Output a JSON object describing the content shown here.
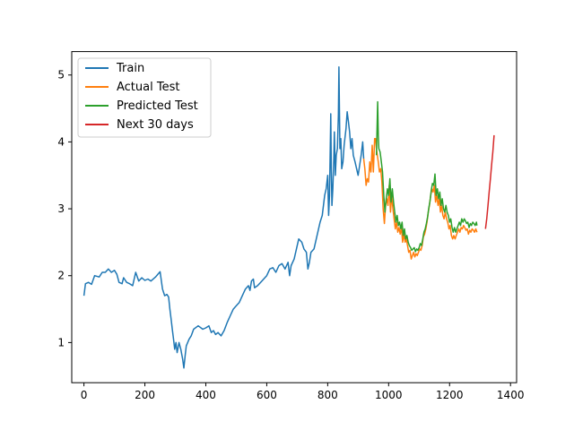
{
  "chart_data": {
    "type": "line",
    "title": "",
    "xlabel": "",
    "ylabel": "",
    "xlim": [
      -40,
      1420
    ],
    "ylim": [
      0.4,
      5.35
    ],
    "xticks": [
      0,
      200,
      400,
      600,
      800,
      1000,
      1200,
      1400
    ],
    "yticks": [
      1,
      2,
      3,
      4,
      5
    ],
    "xtick_labels": [
      "0",
      "200",
      "400",
      "600",
      "800",
      "1000",
      "1200",
      "1400"
    ],
    "ytick_labels": [
      "1",
      "2",
      "3",
      "4",
      "5"
    ],
    "legend_position": "top-left",
    "series": [
      {
        "name": "Train",
        "color": "#1f77b4",
        "points": [
          [
            0,
            1.7
          ],
          [
            5,
            1.88
          ],
          [
            15,
            1.9
          ],
          [
            25,
            1.87
          ],
          [
            35,
            2.0
          ],
          [
            50,
            1.98
          ],
          [
            60,
            2.05
          ],
          [
            70,
            2.05
          ],
          [
            80,
            2.1
          ],
          [
            90,
            2.05
          ],
          [
            100,
            2.08
          ],
          [
            108,
            2.02
          ],
          [
            115,
            1.9
          ],
          [
            125,
            1.88
          ],
          [
            130,
            1.97
          ],
          [
            140,
            1.9
          ],
          [
            150,
            1.88
          ],
          [
            160,
            1.85
          ],
          [
            170,
            2.05
          ],
          [
            180,
            1.92
          ],
          [
            190,
            1.97
          ],
          [
            200,
            1.93
          ],
          [
            210,
            1.95
          ],
          [
            220,
            1.92
          ],
          [
            235,
            1.98
          ],
          [
            250,
            2.06
          ],
          [
            258,
            1.8
          ],
          [
            265,
            1.7
          ],
          [
            272,
            1.72
          ],
          [
            278,
            1.68
          ],
          [
            282,
            1.5
          ],
          [
            286,
            1.35
          ],
          [
            290,
            1.2
          ],
          [
            294,
            1.05
          ],
          [
            298,
            0.9
          ],
          [
            302,
            1.0
          ],
          [
            306,
            0.85
          ],
          [
            312,
            1.0
          ],
          [
            318,
            0.9
          ],
          [
            324,
            0.75
          ],
          [
            328,
            0.62
          ],
          [
            332,
            0.8
          ],
          [
            336,
            0.95
          ],
          [
            345,
            1.05
          ],
          [
            352,
            1.1
          ],
          [
            360,
            1.2
          ],
          [
            375,
            1.25
          ],
          [
            390,
            1.2
          ],
          [
            400,
            1.22
          ],
          [
            410,
            1.25
          ],
          [
            418,
            1.15
          ],
          [
            425,
            1.18
          ],
          [
            432,
            1.12
          ],
          [
            440,
            1.15
          ],
          [
            450,
            1.1
          ],
          [
            460,
            1.18
          ],
          [
            470,
            1.3
          ],
          [
            480,
            1.4
          ],
          [
            490,
            1.5
          ],
          [
            500,
            1.55
          ],
          [
            510,
            1.6
          ],
          [
            520,
            1.7
          ],
          [
            530,
            1.8
          ],
          [
            540,
            1.85
          ],
          [
            545,
            1.78
          ],
          [
            550,
            1.92
          ],
          [
            556,
            1.95
          ],
          [
            560,
            1.82
          ],
          [
            570,
            1.85
          ],
          [
            580,
            1.9
          ],
          [
            590,
            1.95
          ],
          [
            600,
            2.0
          ],
          [
            610,
            2.1
          ],
          [
            620,
            2.12
          ],
          [
            630,
            2.05
          ],
          [
            640,
            2.15
          ],
          [
            650,
            2.18
          ],
          [
            660,
            2.1
          ],
          [
            670,
            2.2
          ],
          [
            675,
            2.0
          ],
          [
            680,
            2.15
          ],
          [
            690,
            2.25
          ],
          [
            700,
            2.45
          ],
          [
            705,
            2.55
          ],
          [
            715,
            2.5
          ],
          [
            722,
            2.4
          ],
          [
            730,
            2.35
          ],
          [
            735,
            2.1
          ],
          [
            740,
            2.2
          ],
          [
            745,
            2.35
          ],
          [
            755,
            2.4
          ],
          [
            765,
            2.6
          ],
          [
            775,
            2.8
          ],
          [
            782,
            2.9
          ],
          [
            790,
            3.2
          ],
          [
            795,
            3.3
          ],
          [
            800,
            3.5
          ],
          [
            803,
            2.9
          ],
          [
            806,
            3.2
          ],
          [
            810,
            4.42
          ],
          [
            812,
            3.6
          ],
          [
            814,
            3.05
          ],
          [
            817,
            3.3
          ],
          [
            820,
            3.75
          ],
          [
            822,
            4.15
          ],
          [
            825,
            3.5
          ],
          [
            828,
            3.8
          ],
          [
            832,
            3.9
          ],
          [
            835,
            4.4
          ],
          [
            837,
            5.12
          ],
          [
            840,
            3.9
          ],
          [
            843,
            4.05
          ],
          [
            846,
            3.6
          ],
          [
            850,
            3.7
          ],
          [
            854,
            3.95
          ],
          [
            860,
            4.2
          ],
          [
            864,
            4.45
          ],
          [
            868,
            4.3
          ],
          [
            872,
            4.15
          ],
          [
            876,
            3.9
          ],
          [
            880,
            4.05
          ],
          [
            884,
            3.8
          ],
          [
            890,
            3.7
          ],
          [
            895,
            3.6
          ],
          [
            900,
            3.5
          ],
          [
            905,
            3.65
          ],
          [
            910,
            3.8
          ],
          [
            915,
            4.0
          ],
          [
            918,
            3.75
          ]
        ]
      },
      {
        "name": "Actual Test",
        "color": "#ff7f0e",
        "points": [
          [
            918,
            3.75
          ],
          [
            922,
            3.6
          ],
          [
            926,
            3.35
          ],
          [
            930,
            3.45
          ],
          [
            934,
            3.4
          ],
          [
            938,
            3.7
          ],
          [
            942,
            3.55
          ],
          [
            946,
            3.95
          ],
          [
            950,
            3.55
          ],
          [
            954,
            4.05
          ],
          [
            957,
            4.05
          ],
          [
            960,
            3.9
          ],
          [
            963,
            3.8
          ],
          [
            966,
            3.7
          ],
          [
            970,
            3.55
          ],
          [
            974,
            3.6
          ],
          [
            978,
            3.4
          ],
          [
            982,
            3.0
          ],
          [
            986,
            2.78
          ],
          [
            990,
            3.05
          ],
          [
            994,
            3.15
          ],
          [
            998,
            3.05
          ],
          [
            1002,
            3.35
          ],
          [
            1006,
            2.95
          ],
          [
            1010,
            3.2
          ],
          [
            1014,
            3.0
          ],
          [
            1018,
            2.85
          ],
          [
            1022,
            2.7
          ],
          [
            1026,
            2.8
          ],
          [
            1030,
            2.65
          ],
          [
            1034,
            2.72
          ],
          [
            1038,
            2.62
          ],
          [
            1042,
            2.72
          ],
          [
            1046,
            2.5
          ],
          [
            1050,
            2.62
          ],
          [
            1054,
            2.5
          ],
          [
            1058,
            2.55
          ],
          [
            1062,
            2.45
          ],
          [
            1066,
            2.35
          ],
          [
            1070,
            2.38
          ],
          [
            1074,
            2.25
          ],
          [
            1078,
            2.3
          ],
          [
            1082,
            2.35
          ],
          [
            1086,
            2.28
          ],
          [
            1090,
            2.33
          ],
          [
            1094,
            2.3
          ],
          [
            1098,
            2.35
          ],
          [
            1102,
            2.4
          ],
          [
            1106,
            2.38
          ],
          [
            1110,
            2.45
          ],
          [
            1114,
            2.58
          ],
          [
            1118,
            2.62
          ],
          [
            1122,
            2.7
          ],
          [
            1126,
            2.8
          ],
          [
            1130,
            2.95
          ],
          [
            1134,
            3.05
          ],
          [
            1138,
            3.2
          ],
          [
            1142,
            3.3
          ],
          [
            1146,
            3.25
          ],
          [
            1150,
            3.35
          ],
          [
            1154,
            3.1
          ],
          [
            1158,
            3.2
          ],
          [
            1162,
            3.05
          ],
          [
            1166,
            3.15
          ],
          [
            1170,
            2.95
          ],
          [
            1174,
            3.05
          ],
          [
            1178,
            2.9
          ],
          [
            1182,
            2.85
          ],
          [
            1186,
            2.95
          ],
          [
            1190,
            2.85
          ],
          [
            1194,
            2.8
          ],
          [
            1198,
            2.7
          ],
          [
            1202,
            2.75
          ],
          [
            1206,
            2.6
          ],
          [
            1210,
            2.55
          ],
          [
            1214,
            2.6
          ],
          [
            1218,
            2.55
          ],
          [
            1222,
            2.6
          ],
          [
            1226,
            2.65
          ],
          [
            1230,
            2.7
          ],
          [
            1234,
            2.65
          ],
          [
            1238,
            2.72
          ],
          [
            1242,
            2.7
          ],
          [
            1246,
            2.75
          ],
          [
            1250,
            2.72
          ],
          [
            1254,
            2.68
          ],
          [
            1258,
            2.7
          ],
          [
            1262,
            2.62
          ],
          [
            1266,
            2.68
          ],
          [
            1270,
            2.65
          ],
          [
            1274,
            2.7
          ],
          [
            1278,
            2.68
          ],
          [
            1282,
            2.65
          ],
          [
            1286,
            2.7
          ],
          [
            1290,
            2.65
          ]
        ]
      },
      {
        "name": "Predicted Test",
        "color": "#2ca02c",
        "points": [
          [
            960,
            3.8
          ],
          [
            962,
            4.2
          ],
          [
            964,
            4.6
          ],
          [
            966,
            4.1
          ],
          [
            968,
            3.9
          ],
          [
            972,
            3.85
          ],
          [
            976,
            3.7
          ],
          [
            980,
            3.55
          ],
          [
            984,
            3.2
          ],
          [
            988,
            2.95
          ],
          [
            992,
            3.15
          ],
          [
            996,
            3.3
          ],
          [
            1000,
            3.2
          ],
          [
            1004,
            3.45
          ],
          [
            1008,
            3.1
          ],
          [
            1012,
            3.3
          ],
          [
            1016,
            3.1
          ],
          [
            1020,
            2.95
          ],
          [
            1024,
            2.8
          ],
          [
            1028,
            2.9
          ],
          [
            1032,
            2.75
          ],
          [
            1036,
            2.8
          ],
          [
            1040,
            2.7
          ],
          [
            1044,
            2.8
          ],
          [
            1048,
            2.6
          ],
          [
            1052,
            2.7
          ],
          [
            1056,
            2.55
          ],
          [
            1060,
            2.6
          ],
          [
            1064,
            2.5
          ],
          [
            1068,
            2.45
          ],
          [
            1072,
            2.42
          ],
          [
            1076,
            2.38
          ],
          [
            1080,
            2.4
          ],
          [
            1084,
            2.42
          ],
          [
            1088,
            2.36
          ],
          [
            1092,
            2.4
          ],
          [
            1096,
            2.38
          ],
          [
            1100,
            2.42
          ],
          [
            1104,
            2.48
          ],
          [
            1108,
            2.45
          ],
          [
            1112,
            2.55
          ],
          [
            1116,
            2.65
          ],
          [
            1120,
            2.7
          ],
          [
            1124,
            2.78
          ],
          [
            1128,
            2.88
          ],
          [
            1132,
            3.02
          ],
          [
            1136,
            3.12
          ],
          [
            1140,
            3.28
          ],
          [
            1144,
            3.38
          ],
          [
            1148,
            3.35
          ],
          [
            1152,
            3.52
          ],
          [
            1156,
            3.2
          ],
          [
            1160,
            3.3
          ],
          [
            1164,
            3.15
          ],
          [
            1168,
            3.25
          ],
          [
            1172,
            3.05
          ],
          [
            1176,
            3.15
          ],
          [
            1180,
            3.0
          ],
          [
            1184,
            2.95
          ],
          [
            1188,
            3.05
          ],
          [
            1192,
            2.95
          ],
          [
            1196,
            2.9
          ],
          [
            1200,
            2.8
          ],
          [
            1204,
            2.85
          ],
          [
            1208,
            2.72
          ],
          [
            1212,
            2.65
          ],
          [
            1216,
            2.72
          ],
          [
            1220,
            2.65
          ],
          [
            1224,
            2.7
          ],
          [
            1228,
            2.75
          ],
          [
            1232,
            2.8
          ],
          [
            1236,
            2.75
          ],
          [
            1240,
            2.85
          ],
          [
            1244,
            2.8
          ],
          [
            1248,
            2.85
          ],
          [
            1252,
            2.82
          ],
          [
            1256,
            2.78
          ],
          [
            1260,
            2.8
          ],
          [
            1264,
            2.72
          ],
          [
            1268,
            2.78
          ],
          [
            1272,
            2.75
          ],
          [
            1276,
            2.8
          ],
          [
            1280,
            2.78
          ],
          [
            1284,
            2.75
          ],
          [
            1288,
            2.8
          ],
          [
            1290,
            2.75
          ]
        ]
      },
      {
        "name": "Next 30 days",
        "color": "#d62728",
        "points": [
          [
            1318,
            2.7
          ],
          [
            1322,
            2.85
          ],
          [
            1326,
            3.05
          ],
          [
            1330,
            3.25
          ],
          [
            1334,
            3.45
          ],
          [
            1338,
            3.65
          ],
          [
            1342,
            3.85
          ],
          [
            1346,
            4.1
          ]
        ]
      }
    ]
  }
}
